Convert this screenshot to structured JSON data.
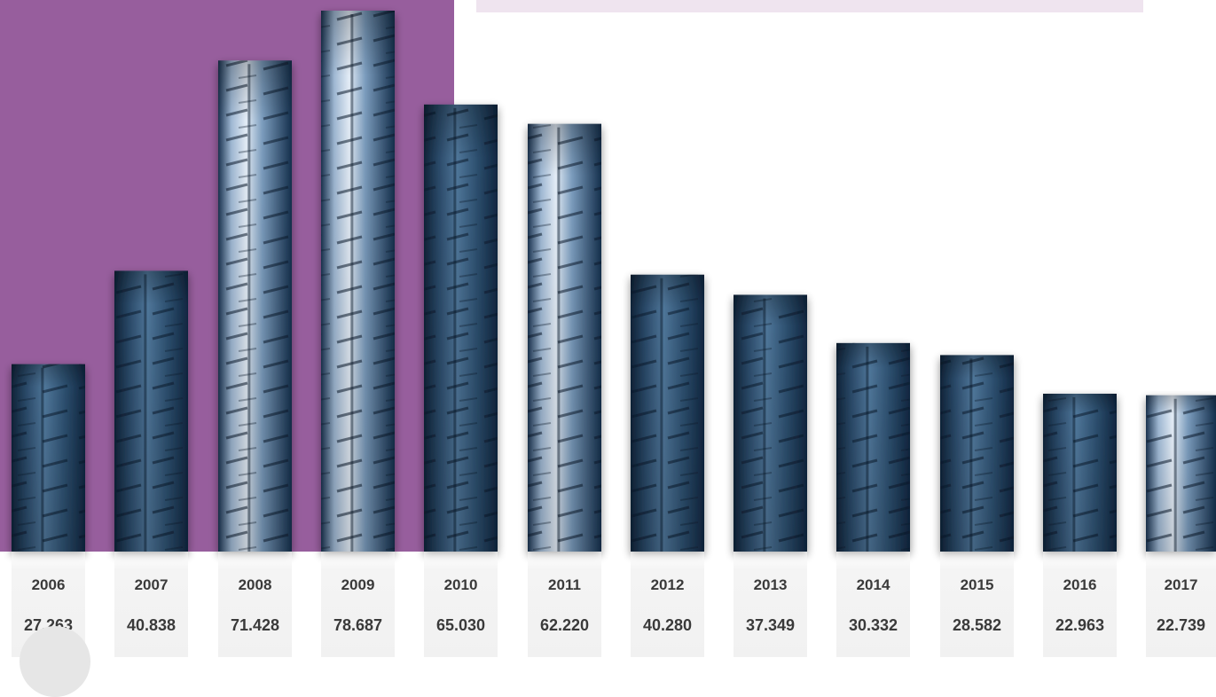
{
  "colors": {
    "panel": "#975e9d",
    "top_bar": "#efe4ef",
    "bar_dark": "#0f2338",
    "bar_mid": "#3f6483",
    "bar_light": "#dfe9f4",
    "label_text": "#3a3a3a"
  },
  "chart_data": {
    "type": "bar",
    "categories": [
      "2006",
      "2007",
      "2008",
      "2009",
      "2010",
      "2011",
      "2012",
      "2013",
      "2014",
      "2015",
      "2016",
      "2017"
    ],
    "values": [
      27.263,
      40.838,
      71.428,
      78.687,
      65.03,
      62.22,
      40.28,
      37.349,
      30.332,
      28.582,
      22.963,
      22.739
    ],
    "value_labels": [
      "27.263",
      "40.838",
      "71.428",
      "78.687",
      "65.030",
      "62.220",
      "40.280",
      "37.349",
      "30.332",
      "28.582",
      "22.963",
      "22.739"
    ],
    "title": "",
    "xlabel": "",
    "ylabel": "",
    "ylim": [
      0,
      80
    ],
    "grid": false,
    "bar_style": "tyre-tread texture"
  }
}
